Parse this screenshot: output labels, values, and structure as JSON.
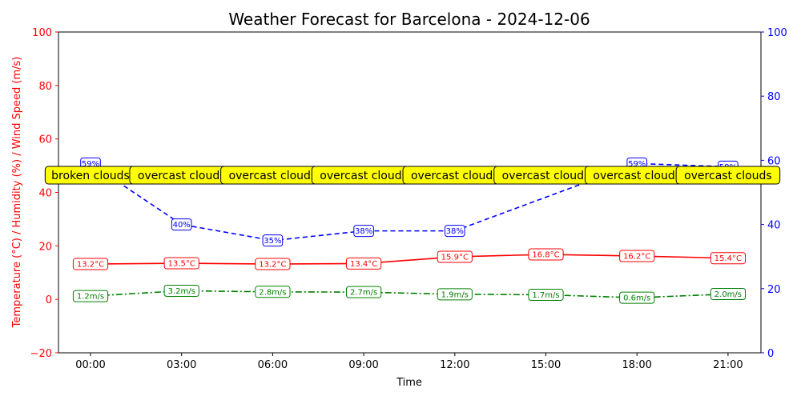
{
  "chart_data": {
    "type": "line",
    "title": "Weather Forecast for Barcelona - 2024-12-06",
    "xlabel": "Time",
    "ylabel": "Temperature (°C) / Humidity (%) / Wind Speed (m/s)",
    "categories": [
      "00:00",
      "03:00",
      "06:00",
      "09:00",
      "12:00",
      "15:00",
      "18:00",
      "21:00"
    ],
    "ylim": [
      -20,
      100
    ],
    "y2lim": [
      0,
      100
    ],
    "yticks": [
      "−20",
      "0",
      "20",
      "40",
      "60",
      "80",
      "100"
    ],
    "y2ticks": [
      "0",
      "20",
      "40",
      "60",
      "80",
      "100"
    ],
    "colors": {
      "temperature": "#ff0000",
      "humidity": "#0000ff",
      "wind": "#008000",
      "condition_box": "#ffff00"
    },
    "series": [
      {
        "key": "temperature",
        "axis": "left",
        "style": "solid",
        "values": [
          13.2,
          13.5,
          13.2,
          13.4,
          15.9,
          16.8,
          16.2,
          15.4
        ],
        "labels": [
          "13.2°C",
          "13.5°C",
          "13.2°C",
          "13.4°C",
          "15.9°C",
          "16.8°C",
          "16.2°C",
          "15.4°C"
        ]
      },
      {
        "key": "humidity",
        "axis": "right",
        "style": "dashed",
        "values": [
          59,
          40,
          35,
          38,
          38,
          null,
          59,
          58
        ],
        "labels": [
          "59%",
          "40%",
          "35%",
          "38%",
          "38%",
          null,
          "59%",
          "58%"
        ]
      },
      {
        "key": "wind",
        "axis": "left",
        "style": "dashdot",
        "values": [
          1.2,
          3.2,
          2.8,
          2.7,
          1.9,
          1.7,
          0.6,
          2.0
        ],
        "labels": [
          "1.2m/s",
          "3.2m/s",
          "2.8m/s",
          "2.7m/s",
          "1.9m/s",
          "1.7m/s",
          "0.6m/s",
          "2.0m/s"
        ]
      }
    ],
    "conditions": [
      "broken clouds",
      "overcast clouds",
      "overcast clouds",
      "overcast clouds",
      "overcast clouds",
      "overcast clouds",
      "overcast clouds",
      "overcast clouds"
    ],
    "grid": false
  }
}
